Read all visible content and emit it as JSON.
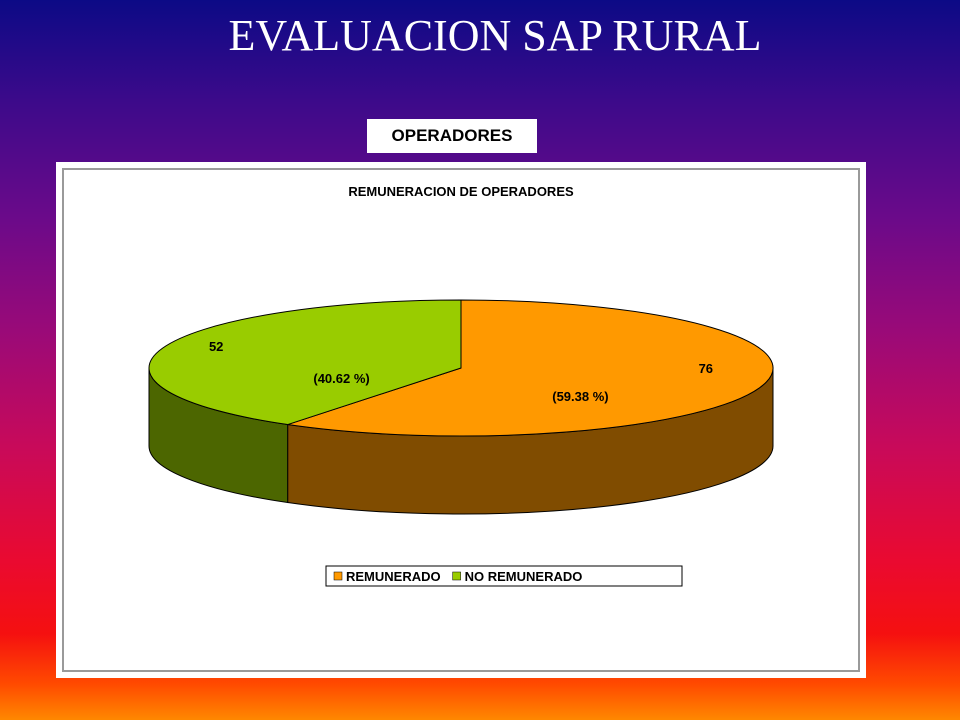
{
  "slide": {
    "title": "EVALUACION SAP  RURAL",
    "section_label": "OPERADORES"
  },
  "chart_data": {
    "type": "pie",
    "title": "REMUNERACION DE OPERADORES",
    "three_d": true,
    "legend_position": "bottom",
    "slices": [
      {
        "name": "REMUNERADO",
        "value": 76,
        "percent_label": "(59.38 %)",
        "color": "#ff9900",
        "side_color": "#804c00"
      },
      {
        "name": "NO REMUNERADO",
        "value": 52,
        "percent_label": "(40.62 %)",
        "color": "#99cc00",
        "side_color": "#4c6600"
      }
    ]
  }
}
